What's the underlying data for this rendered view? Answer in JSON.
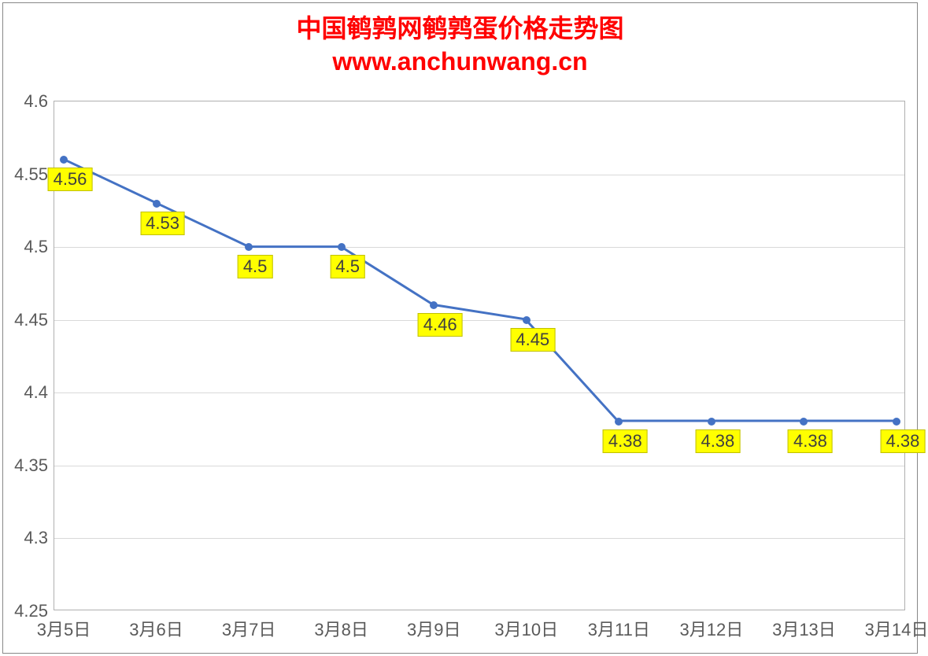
{
  "chart": {
    "type": "line",
    "title_line1": "中国鹌鹑网鹌鹑蛋价格走势图",
    "title_line2": "www.anchunwang.cn",
    "title_color": "#ff0000",
    "title_fontsize": 32,
    "background_color": "#ffffff",
    "border_color": "#888888",
    "grid_color": "#d9d9d9",
    "axis_label_color": "#595959",
    "axis_fontsize": 22,
    "line_color": "#4472c4",
    "line_width": 3,
    "marker_color": "#4472c4",
    "marker_size": 10,
    "data_label_bg": "#ffff00",
    "data_label_color": "#404040",
    "data_label_fontsize": 22,
    "ylim": [
      4.25,
      4.6
    ],
    "ytick_step": 0.05,
    "yticks": [
      "4.25",
      "4.3",
      "4.35",
      "4.4",
      "4.45",
      "4.5",
      "4.55",
      "4.6"
    ],
    "categories": [
      "3月5日",
      "3月6日",
      "3月7日",
      "3月8日",
      "3月9日",
      "3月10日",
      "3月11日",
      "3月12日",
      "3月13日",
      "3月14日"
    ],
    "values": [
      4.56,
      4.53,
      4.5,
      4.5,
      4.46,
      4.45,
      4.38,
      4.38,
      4.38,
      4.38
    ],
    "value_labels": [
      "4.56",
      "4.53",
      "4.5",
      "4.5",
      "4.46",
      "4.45",
      "4.38",
      "4.38",
      "4.38",
      "4.38"
    ]
  }
}
